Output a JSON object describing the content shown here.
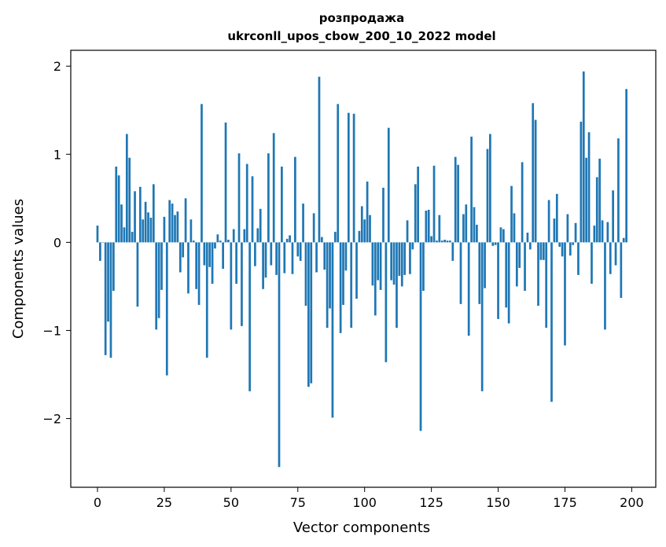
{
  "chart_data": {
    "type": "bar",
    "title_line1": "розпродажа",
    "title_line2": "ukrconll_upos_cbow_200_10_2022 model",
    "xlabel": "Vector components",
    "ylabel": "Components values",
    "xlim": [
      -10,
      209
    ],
    "ylim": [
      -2.78,
      2.18
    ],
    "x_ticks": [
      0,
      25,
      50,
      75,
      100,
      125,
      150,
      175,
      200
    ],
    "y_ticks": [
      2,
      1,
      0,
      -1,
      -2
    ],
    "y_tick_labels": [
      "2",
      "1",
      "0",
      "−1",
      "−2"
    ],
    "grid": false,
    "bar_color": "#1f77b4",
    "values": [
      0.19,
      -0.21,
      0.0,
      -1.28,
      -0.9,
      -1.31,
      -0.55,
      0.86,
      0.76,
      0.43,
      0.17,
      1.23,
      0.96,
      0.12,
      0.58,
      -0.73,
      0.63,
      0.26,
      0.46,
      0.34,
      0.28,
      0.66,
      -0.99,
      -0.86,
      -0.54,
      0.29,
      -1.51,
      0.48,
      0.44,
      0.31,
      0.35,
      -0.34,
      -0.17,
      0.5,
      -0.58,
      0.26,
      0.02,
      -0.53,
      -0.71,
      1.57,
      -0.26,
      -1.31,
      -0.28,
      -0.47,
      -0.07,
      0.09,
      0.02,
      -0.3,
      1.36,
      0.03,
      -0.99,
      0.15,
      -0.47,
      1.01,
      -0.95,
      0.15,
      0.89,
      -1.69,
      0.75,
      -0.27,
      0.16,
      0.38,
      -0.53,
      -0.4,
      1.01,
      -0.26,
      1.24,
      -0.37,
      -2.55,
      0.86,
      -0.35,
      0.04,
      0.08,
      -0.36,
      0.97,
      -0.16,
      -0.21,
      0.44,
      -0.72,
      -1.64,
      -1.6,
      0.33,
      -0.34,
      1.88,
      0.06,
      -0.31,
      -0.97,
      -0.75,
      -1.99,
      0.12,
      1.57,
      -1.03,
      -0.71,
      -0.32,
      1.47,
      -0.97,
      1.46,
      -0.64,
      0.13,
      0.41,
      0.26,
      0.69,
      0.31,
      -0.49,
      -0.83,
      -0.43,
      -0.54,
      0.62,
      -1.36,
      1.3,
      -0.43,
      -0.48,
      -0.97,
      -0.38,
      -0.5,
      -0.37,
      0.25,
      -0.36,
      -0.08,
      0.66,
      0.86,
      -2.14,
      -0.55,
      0.36,
      0.37,
      0.07,
      0.87,
      0.02,
      0.31,
      0.02,
      0.03,
      0.02,
      0.02,
      -0.21,
      0.97,
      0.88,
      -0.7,
      0.32,
      0.43,
      -1.06,
      1.2,
      0.4,
      0.2,
      -0.7,
      -1.69,
      -0.52,
      1.06,
      1.23,
      -0.04,
      -0.03,
      -0.87,
      0.17,
      0.15,
      -0.74,
      -0.92,
      0.64,
      0.33,
      -0.5,
      -0.29,
      0.91,
      -0.55,
      0.11,
      -0.08,
      1.58,
      1.39,
      -0.72,
      -0.2,
      -0.2,
      -0.97,
      0.48,
      -1.81,
      0.27,
      0.55,
      -0.05,
      -0.16,
      -1.17,
      0.32,
      -0.15,
      -0.03,
      0.22,
      -0.37,
      1.37,
      1.94,
      0.96,
      1.25,
      -0.47,
      0.19,
      0.74,
      0.95,
      0.25,
      -0.99,
      0.23,
      -0.36,
      0.59,
      -0.26,
      1.18,
      -0.63,
      0.05,
      1.74
    ]
  }
}
